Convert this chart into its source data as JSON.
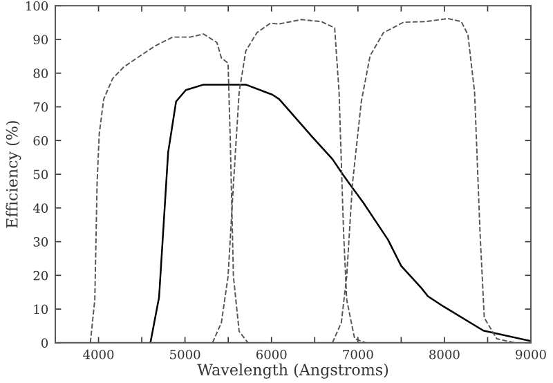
{
  "chart_data": {
    "type": "line",
    "xlabel": "Wavelength (Angstroms)",
    "ylabel": "Efficiency (%)",
    "xlim": [
      3500,
      9000
    ],
    "ylim": [
      0,
      100
    ],
    "xticks": [
      {
        "value": 3500,
        "label": null
      },
      4000,
      {
        "value": 4500,
        "label": null
      },
      5000,
      {
        "value": 5500,
        "label": null
      },
      6000,
      {
        "value": 6500,
        "label": null
      },
      7000,
      {
        "value": 7500,
        "label": null
      },
      8000,
      {
        "value": 8500,
        "label": null
      },
      9000
    ],
    "yticks": [
      0,
      10,
      20,
      30,
      40,
      50,
      60,
      70,
      80,
      90,
      100
    ],
    "grid": false,
    "legend": false,
    "series": [
      {
        "color": "#000000",
        "line_style": "solid",
        "x": [
          4600,
          4700,
          4805,
          4897,
          5010,
          5215,
          5703,
          6011,
          6089,
          6474,
          6705,
          6823,
          7064,
          7347,
          7500,
          7732,
          7809,
          7988,
          8451,
          9000
        ],
        "values": [
          0,
          13.5,
          56.5,
          71.6,
          75,
          76.6,
          76.6,
          73.6,
          72.3,
          61,
          54.5,
          50,
          41.5,
          30.6,
          22.8,
          16.3,
          13.8,
          10.8,
          3.6,
          0.5
        ]
      },
      {
        "color": "#555555",
        "line_style": "dashed",
        "x": [
          3905,
          3957,
          3983,
          4008,
          4060,
          4163,
          4291,
          4445,
          4650,
          4856,
          5061,
          5215,
          5369,
          5421,
          5498,
          5523,
          5560,
          5626,
          5729
        ],
        "values": [
          0,
          12.8,
          47,
          62,
          72.3,
          78.4,
          81.8,
          84.5,
          88,
          90.7,
          90.7,
          91.6,
          89.1,
          84.5,
          83,
          60.7,
          19.7,
          3.4,
          0
        ]
      },
      {
        "color": "#555555",
        "line_style": "dashed",
        "x": [
          5318,
          5421,
          5498,
          5560,
          5626,
          5703,
          5832,
          5986,
          6089,
          6346,
          6577,
          6731,
          6782,
          6833,
          6870,
          6962,
          7089
        ],
        "values": [
          0,
          6,
          19.7,
          47,
          74.3,
          86.6,
          92,
          94.8,
          94.6,
          95.9,
          95.3,
          93.4,
          74.3,
          33.3,
          12.8,
          1.2,
          0
        ]
      },
      {
        "color": "#555555",
        "line_style": "dashed",
        "x": [
          6705,
          6808,
          6870,
          6936,
          7039,
          7141,
          7295,
          7526,
          7784,
          8041,
          8195,
          8272,
          8349,
          8411,
          8461,
          8605,
          8811
        ],
        "values": [
          0,
          6,
          19.7,
          47,
          71.6,
          85.2,
          92,
          95.1,
          95.3,
          96.2,
          95.3,
          91.4,
          74.3,
          33.3,
          7.4,
          1.2,
          0
        ]
      }
    ]
  }
}
